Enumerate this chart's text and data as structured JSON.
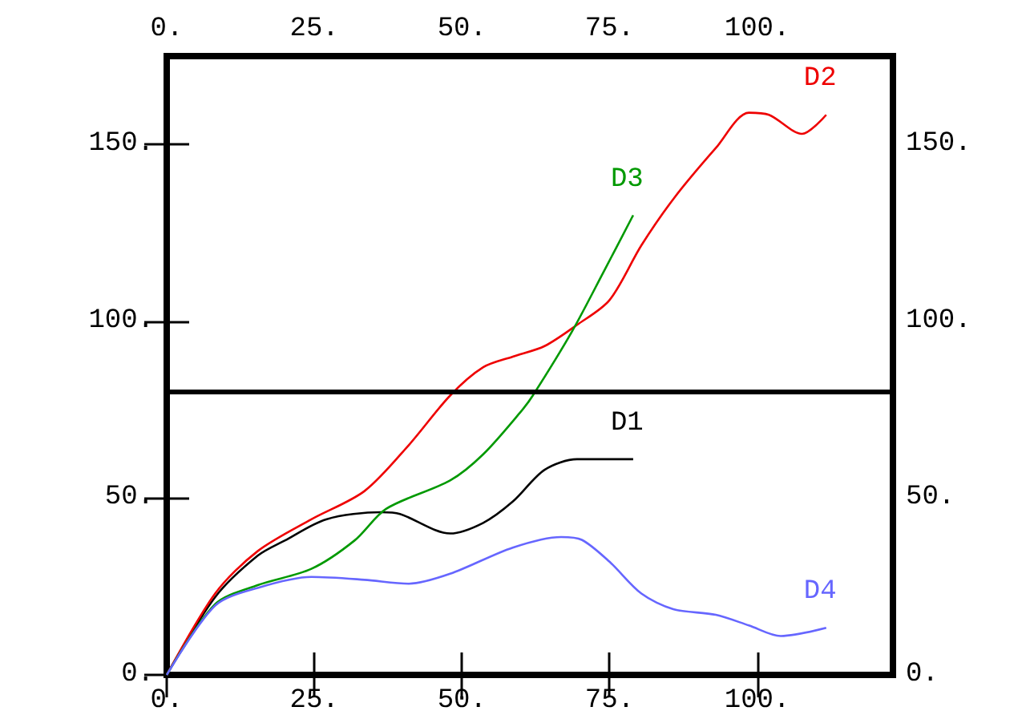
{
  "chart_data": {
    "type": "line",
    "marker": "none",
    "grid": false,
    "legend": false,
    "xlim": [
      0,
      123
    ],
    "xticks": [
      {
        "value": 0,
        "label": "0."
      },
      {
        "value": 25,
        "label": "25."
      },
      {
        "value": 50,
        "label": "50."
      },
      {
        "value": 75,
        "label": "75."
      },
      {
        "value": 100,
        "label": "100."
      }
    ],
    "x2lim": [
      0,
      123
    ],
    "x2ticks": [
      {
        "value": 0,
        "label": "0."
      },
      {
        "value": 25,
        "label": "25."
      },
      {
        "value": 50,
        "label": "50."
      },
      {
        "value": 75,
        "label": "75."
      },
      {
        "value": 100,
        "label": "100."
      }
    ],
    "ylim": [
      0,
      175
    ],
    "yticks": [
      {
        "value": 0,
        "label": "0."
      },
      {
        "value": 50,
        "label": "50."
      },
      {
        "value": 100,
        "label": "100."
      },
      {
        "value": 150,
        "label": "150."
      }
    ],
    "y2lim": [
      0,
      175
    ],
    "y2ticks": [
      {
        "value": 0,
        "label": "0."
      },
      {
        "value": 50,
        "label": "50."
      },
      {
        "value": 100,
        "label": "100."
      },
      {
        "value": 150,
        "label": "150."
      }
    ],
    "ref_lines": [
      {
        "axis": "y",
        "value": 80,
        "color": "#000000",
        "line_style": "solid"
      }
    ],
    "series": [
      {
        "name": "D1",
        "color": "#000000",
        "x": [
          0,
          8.2,
          15.4,
          20,
          27,
          36.3,
          39.5,
          48,
          53.6,
          58.6,
          64,
          69.5,
          79
        ],
        "values": [
          0,
          22,
          33.7,
          38,
          44,
          46,
          45.5,
          40,
          43,
          49,
          58,
          61,
          61
        ]
      },
      {
        "name": "D2",
        "color": "#ee0000",
        "x": [
          0,
          8.2,
          15.4,
          24.5,
          33.5,
          41,
          48,
          53.6,
          58.6,
          64,
          69.5,
          75,
          80.4,
          86,
          93,
          98.6,
          102,
          107.6,
          111.7
        ],
        "values": [
          0,
          23,
          35,
          44,
          52,
          65,
          79,
          87,
          90,
          93,
          99,
          106,
          121.5,
          135,
          149,
          159,
          158.4,
          153,
          158.4
        ]
      },
      {
        "name": "D3",
        "color": "#009900",
        "x": [
          0,
          8.2,
          15.4,
          24.5,
          31.8,
          37.2,
          48,
          53.6,
          60,
          62,
          68.6,
          74,
          79
        ],
        "values": [
          0,
          20,
          25.4,
          30,
          38,
          47,
          55,
          62.4,
          74.5,
          79,
          97,
          114,
          130
        ]
      },
      {
        "name": "D4",
        "color": "#6666ff",
        "x": [
          0,
          8.2,
          15.4,
          24.5,
          33.5,
          41,
          48,
          58.6,
          66.8,
          70.3,
          75,
          80.4,
          85.8,
          93,
          98.6,
          104,
          111.7
        ],
        "values": [
          0,
          19.6,
          24.6,
          27.7,
          26.9,
          25.8,
          28.6,
          36,
          39,
          38.2,
          32,
          23,
          18.6,
          17,
          14,
          11,
          13.3
        ]
      }
    ]
  }
}
